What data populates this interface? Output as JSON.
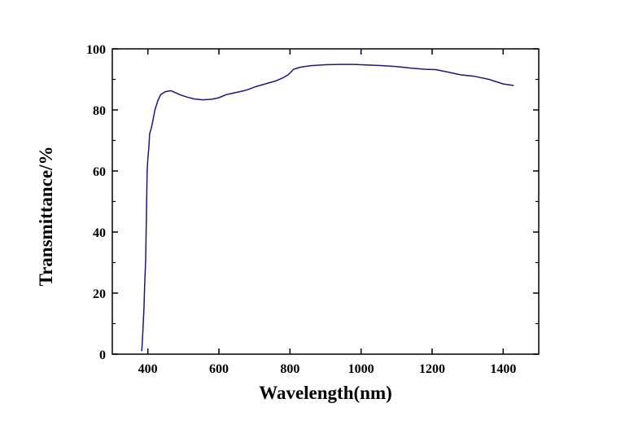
{
  "chart_data": {
    "type": "line",
    "title": "",
    "xlabel": "Wavelength(nm)",
    "ylabel": "Transmittance/%",
    "xlim": [
      300,
      1500
    ],
    "ylim": [
      0,
      100
    ],
    "x_ticks": [
      400,
      600,
      800,
      1000,
      1200,
      1400
    ],
    "y_ticks": [
      0,
      20,
      40,
      60,
      80,
      100
    ],
    "x_tick_labels": [
      "400",
      "600",
      "800",
      "1000",
      "1200",
      "1400"
    ],
    "y_tick_labels": [
      "0",
      "20",
      "40",
      "60",
      "80",
      "100"
    ],
    "grid": false,
    "line_color": "#1a1a6e",
    "series": [
      {
        "name": "Transmittance",
        "x": [
          383,
          385,
          387,
          389,
          391,
          394,
          396,
          398,
          400,
          403,
          405,
          407,
          410,
          415,
          420,
          428,
          436,
          450,
          465,
          475,
          490,
          510,
          530,
          555,
          580,
          600,
          620,
          640,
          660,
          680,
          700,
          730,
          760,
          780,
          795,
          810,
          830,
          860,
          900,
          940,
          980,
          1020,
          1060,
          1100,
          1140,
          1180,
          1210,
          1240,
          1280,
          1320,
          1360,
          1400,
          1430
        ],
        "y": [
          1,
          5,
          10,
          15,
          22,
          31,
          45,
          60,
          64,
          68,
          72,
          73,
          74,
          77,
          80,
          83,
          85,
          86,
          86.3,
          85.8,
          85,
          84.2,
          83.6,
          83.3,
          83.5,
          84,
          85,
          85.5,
          86,
          86.6,
          87.5,
          88.5,
          89.5,
          90.5,
          91.5,
          93.3,
          94,
          94.5,
          94.8,
          94.9,
          94.9,
          94.7,
          94.5,
          94.2,
          93.7,
          93.3,
          93.2,
          92.5,
          91.5,
          91,
          90,
          88.5,
          88
        ]
      }
    ]
  }
}
